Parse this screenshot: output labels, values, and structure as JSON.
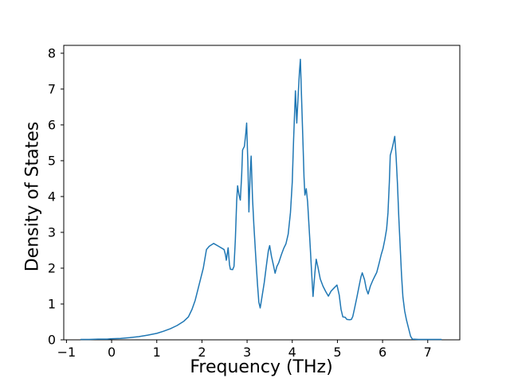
{
  "figure": {
    "background": "#ffffff",
    "title": ""
  },
  "chart_data": {
    "type": "line",
    "title": "",
    "xlabel": "Frequency (THz)",
    "ylabel": "Density of States",
    "xlim": [
      -1.06,
      7.71
    ],
    "ylim": [
      0,
      8.22
    ],
    "x_ticks": [
      -1,
      0,
      1,
      2,
      3,
      4,
      5,
      6,
      7
    ],
    "x_tick_labels": [
      "−1",
      "0",
      "1",
      "2",
      "3",
      "4",
      "5",
      "6",
      "7"
    ],
    "y_ticks": [
      0,
      1,
      2,
      3,
      4,
      5,
      6,
      7,
      8
    ],
    "y_tick_labels": [
      "0",
      "1",
      "2",
      "3",
      "4",
      "5",
      "6",
      "7",
      "8"
    ],
    "grid": false,
    "legend": false,
    "series": [
      {
        "name": "density-of-states",
        "color": "#1f77b4",
        "line_width": 1.5,
        "x": [
          -0.68,
          -0.5,
          -0.3,
          -0.1,
          0.0,
          0.2,
          0.4,
          0.6,
          0.8,
          1.0,
          1.15,
          1.3,
          1.45,
          1.6,
          1.7,
          1.78,
          1.85,
          1.92,
          1.98,
          2.03,
          2.07,
          2.1,
          2.16,
          2.26,
          2.37,
          2.49,
          2.52,
          2.54,
          2.58,
          2.61,
          2.63,
          2.68,
          2.71,
          2.74,
          2.77,
          2.79,
          2.82,
          2.85,
          2.88,
          2.9,
          2.94,
          2.97,
          2.99,
          3.02,
          3.04,
          3.07,
          3.09,
          3.12,
          3.15,
          3.19,
          3.23,
          3.26,
          3.29,
          3.33,
          3.38,
          3.43,
          3.47,
          3.5,
          3.54,
          3.58,
          3.62,
          3.66,
          3.7,
          3.76,
          3.81,
          3.86,
          3.91,
          3.96,
          4.0,
          4.03,
          4.06,
          4.07,
          4.1,
          4.13,
          4.16,
          4.18,
          4.21,
          4.24,
          4.26,
          4.28,
          4.31,
          4.34,
          4.37,
          4.4,
          4.43,
          4.46,
          4.5,
          4.53,
          4.57,
          4.62,
          4.68,
          4.74,
          4.8,
          4.86,
          4.92,
          4.99,
          5.04,
          5.08,
          5.12,
          5.17,
          5.21,
          5.27,
          5.31,
          5.34,
          5.38,
          5.43,
          5.48,
          5.52,
          5.55,
          5.6,
          5.64,
          5.68,
          5.73,
          5.78,
          5.83,
          5.87,
          5.92,
          5.97,
          6.01,
          6.05,
          6.09,
          6.12,
          6.15,
          6.17,
          6.21,
          6.24,
          6.27,
          6.3,
          6.33,
          6.36,
          6.39,
          6.42,
          6.45,
          6.49,
          6.53,
          6.58,
          6.62,
          6.66,
          6.8,
          7.0,
          7.15,
          7.3
        ],
        "y": [
          0.01,
          0.01,
          0.02,
          0.02,
          0.03,
          0.04,
          0.06,
          0.09,
          0.13,
          0.18,
          0.24,
          0.31,
          0.4,
          0.52,
          0.64,
          0.85,
          1.1,
          1.45,
          1.75,
          2.0,
          2.3,
          2.52,
          2.61,
          2.69,
          2.61,
          2.52,
          2.38,
          2.22,
          2.57,
          2.1,
          1.97,
          1.96,
          2.05,
          2.8,
          3.9,
          4.3,
          4.05,
          3.9,
          4.6,
          5.3,
          5.4,
          5.75,
          6.05,
          4.8,
          3.57,
          4.7,
          5.13,
          3.95,
          3.2,
          2.35,
          1.55,
          1.05,
          0.89,
          1.2,
          1.6,
          2.1,
          2.48,
          2.63,
          2.33,
          2.1,
          1.86,
          2.05,
          2.15,
          2.38,
          2.55,
          2.68,
          2.95,
          3.55,
          4.4,
          5.6,
          6.6,
          6.95,
          6.05,
          6.8,
          7.5,
          7.83,
          6.6,
          5.4,
          4.55,
          4.04,
          4.22,
          3.85,
          3.2,
          2.55,
          1.85,
          1.21,
          1.85,
          2.25,
          2.02,
          1.7,
          1.5,
          1.35,
          1.22,
          1.36,
          1.44,
          1.53,
          1.25,
          0.85,
          0.64,
          0.63,
          0.57,
          0.56,
          0.57,
          0.65,
          0.88,
          1.18,
          1.5,
          1.75,
          1.87,
          1.68,
          1.42,
          1.28,
          1.5,
          1.65,
          1.78,
          1.88,
          2.12,
          2.38,
          2.55,
          2.8,
          3.1,
          3.55,
          4.4,
          5.15,
          5.33,
          5.5,
          5.68,
          5.1,
          4.35,
          3.4,
          2.6,
          1.8,
          1.2,
          0.8,
          0.55,
          0.3,
          0.1,
          0.02,
          0.01,
          0.01,
          0.01,
          0.01
        ]
      }
    ]
  }
}
